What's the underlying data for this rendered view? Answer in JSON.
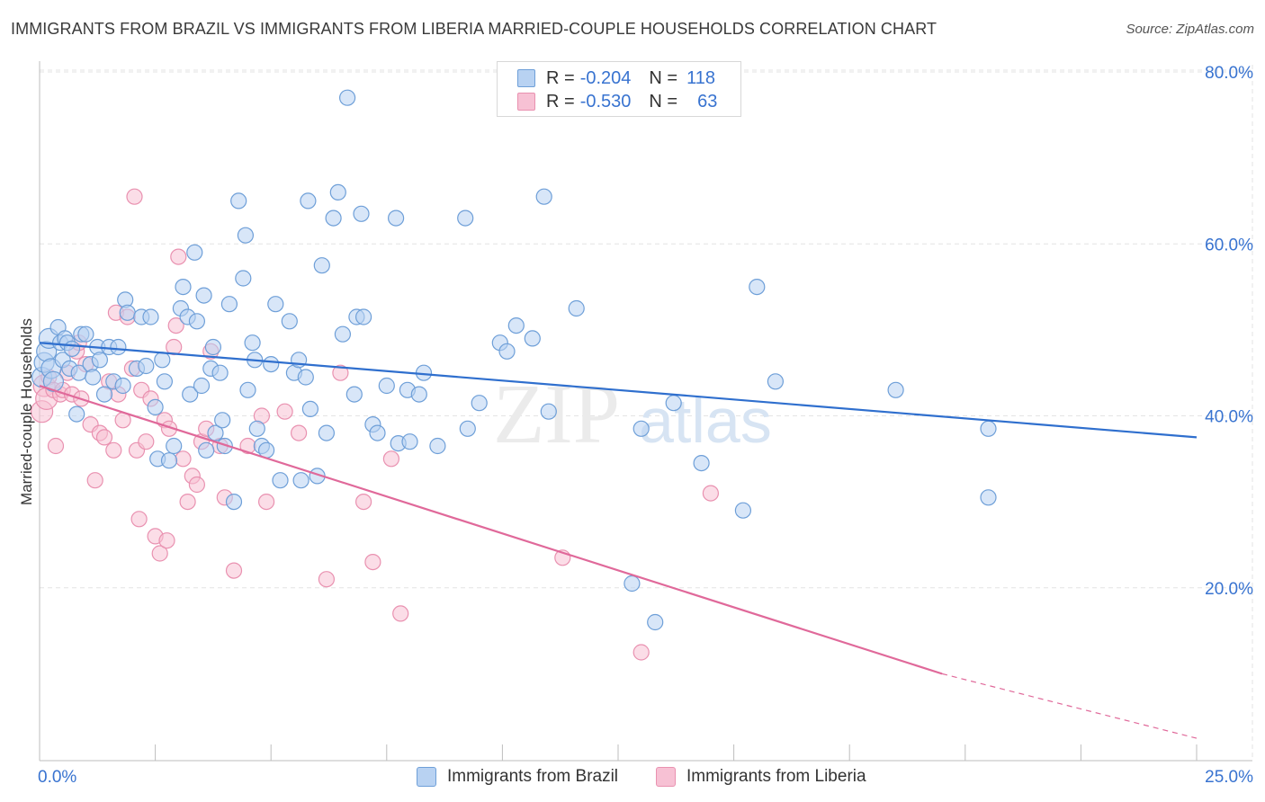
{
  "title": "IMMIGRANTS FROM BRAZIL VS IMMIGRANTS FROM LIBERIA MARRIED-COUPLE HOUSEHOLDS CORRELATION CHART",
  "source": "Source: ZipAtlas.com",
  "watermark": {
    "zip": "ZIP",
    "atlas": "atlas"
  },
  "legend": {
    "brazil": {
      "r_label": "R =",
      "r_value": "-0.204",
      "n_label": "N =",
      "n_value": "118"
    },
    "liberia": {
      "r_label": "R =",
      "r_value": "-0.530",
      "n_label": "N =",
      "n_value": "63"
    }
  },
  "colors": {
    "brazil_fill": "#b8d2f2",
    "brazil_stroke": "#6e9fd8",
    "brazil_line": "#2f6fce",
    "liberia_fill": "#f7c1d4",
    "liberia_stroke": "#e991b0",
    "liberia_line": "#e0699a",
    "axis_label": "#3873d0",
    "grid": "#e3e3e3"
  },
  "chart_data": {
    "type": "scatter",
    "title": "IMMIGRANTS FROM BRAZIL VS IMMIGRANTS FROM LIBERIA MARRIED-COUPLE HOUSEHOLDS CORRELATION CHART",
    "xlabel": "",
    "ylabel": "Married-couple Households",
    "xlim": [
      0,
      25
    ],
    "ylim": [
      0,
      80
    ],
    "x_tick_labels": [
      "0.0%",
      "25.0%"
    ],
    "y_ticks": [
      20,
      40,
      60,
      80
    ],
    "y_tick_labels": [
      "20.0%",
      "40.0%",
      "60.0%",
      "80.0%"
    ],
    "series": [
      {
        "name": "Immigrants from Brazil",
        "key": "brazil",
        "R": -0.204,
        "N": 118,
        "trend": {
          "x0": 0,
          "y0": 48.5,
          "x1": 25,
          "y1": 37.5
        },
        "points": [
          [
            0.05,
            44.5
          ],
          [
            0.1,
            46.2
          ],
          [
            0.15,
            47.5
          ],
          [
            0.2,
            49.0
          ],
          [
            0.25,
            45.5
          ],
          [
            0.3,
            44.0
          ],
          [
            0.4,
            50.3
          ],
          [
            0.45,
            48.5
          ],
          [
            0.5,
            46.5
          ],
          [
            0.55,
            49.0
          ],
          [
            0.6,
            48.5
          ],
          [
            0.65,
            45.5
          ],
          [
            0.7,
            47.8
          ],
          [
            0.8,
            40.2
          ],
          [
            0.85,
            45.0
          ],
          [
            0.9,
            49.5
          ],
          [
            1.0,
            49.5
          ],
          [
            1.1,
            46.0
          ],
          [
            1.15,
            44.5
          ],
          [
            1.25,
            48.0
          ],
          [
            1.3,
            46.5
          ],
          [
            1.4,
            42.5
          ],
          [
            1.5,
            48.0
          ],
          [
            1.6,
            44.0
          ],
          [
            1.7,
            48.0
          ],
          [
            1.8,
            43.5
          ],
          [
            1.85,
            53.5
          ],
          [
            1.9,
            52.0
          ],
          [
            2.1,
            45.5
          ],
          [
            2.2,
            51.5
          ],
          [
            2.3,
            45.8
          ],
          [
            2.4,
            51.5
          ],
          [
            2.5,
            41.0
          ],
          [
            2.55,
            35.0
          ],
          [
            2.65,
            46.5
          ],
          [
            2.7,
            44.0
          ],
          [
            2.8,
            34.8
          ],
          [
            2.9,
            36.5
          ],
          [
            3.05,
            52.5
          ],
          [
            3.1,
            55.0
          ],
          [
            3.2,
            51.5
          ],
          [
            3.25,
            42.5
          ],
          [
            3.35,
            59.0
          ],
          [
            3.4,
            51.0
          ],
          [
            3.5,
            43.5
          ],
          [
            3.55,
            54.0
          ],
          [
            3.6,
            36.0
          ],
          [
            3.7,
            45.5
          ],
          [
            3.75,
            48.0
          ],
          [
            3.8,
            38.0
          ],
          [
            3.9,
            45.0
          ],
          [
            3.95,
            39.5
          ],
          [
            4.0,
            36.5
          ],
          [
            4.1,
            53.0
          ],
          [
            4.2,
            30.0
          ],
          [
            4.3,
            65.0
          ],
          [
            4.4,
            56.0
          ],
          [
            4.45,
            61.0
          ],
          [
            4.5,
            43.0
          ],
          [
            4.6,
            48.5
          ],
          [
            4.65,
            46.5
          ],
          [
            4.7,
            38.5
          ],
          [
            4.8,
            36.5
          ],
          [
            4.9,
            36.0
          ],
          [
            5.0,
            46.0
          ],
          [
            5.1,
            53.0
          ],
          [
            5.2,
            32.5
          ],
          [
            5.4,
            51.0
          ],
          [
            5.5,
            45.0
          ],
          [
            5.6,
            46.5
          ],
          [
            5.65,
            32.5
          ],
          [
            5.75,
            44.5
          ],
          [
            5.8,
            65.0
          ],
          [
            5.85,
            40.8
          ],
          [
            6.0,
            33.0
          ],
          [
            6.1,
            57.5
          ],
          [
            6.2,
            38.0
          ],
          [
            6.35,
            63.0
          ],
          [
            6.45,
            66.0
          ],
          [
            6.55,
            49.5
          ],
          [
            6.65,
            77.0
          ],
          [
            6.8,
            42.5
          ],
          [
            6.85,
            51.5
          ],
          [
            6.95,
            63.5
          ],
          [
            7.0,
            51.5
          ],
          [
            7.2,
            39.0
          ],
          [
            7.3,
            38.0
          ],
          [
            7.5,
            43.5
          ],
          [
            7.7,
            63.0
          ],
          [
            7.75,
            36.8
          ],
          [
            7.95,
            43.0
          ],
          [
            8.0,
            37.0
          ],
          [
            8.2,
            42.5
          ],
          [
            8.3,
            45.0
          ],
          [
            8.6,
            36.5
          ],
          [
            9.2,
            63.0
          ],
          [
            9.25,
            38.5
          ],
          [
            9.5,
            41.5
          ],
          [
            9.95,
            48.5
          ],
          [
            10.1,
            47.5
          ],
          [
            10.3,
            50.5
          ],
          [
            10.65,
            49.0
          ],
          [
            10.9,
            65.5
          ],
          [
            11.0,
            40.5
          ],
          [
            11.6,
            52.5
          ],
          [
            12.8,
            20.5
          ],
          [
            13.0,
            38.5
          ],
          [
            13.3,
            16.0
          ],
          [
            13.7,
            41.5
          ],
          [
            14.3,
            34.5
          ],
          [
            15.2,
            29.0
          ],
          [
            15.5,
            55.0
          ],
          [
            15.9,
            44.0
          ],
          [
            18.5,
            43.0
          ],
          [
            20.5,
            30.5
          ],
          [
            20.5,
            38.5
          ]
        ]
      },
      {
        "name": "Immigrants from Liberia",
        "key": "liberia",
        "R": -0.53,
        "N": 63,
        "trend": {
          "x0": 0,
          "y0": 43.5,
          "x1": 19.5,
          "y1": 10.0
        },
        "trend_dashed": {
          "x0": 19.5,
          "y0": 10.0,
          "x1": 25,
          "y1": 2.5
        },
        "points": [
          [
            0.05,
            40.5
          ],
          [
            0.1,
            43.5
          ],
          [
            0.15,
            42.0
          ],
          [
            0.2,
            44.5
          ],
          [
            0.3,
            43.0
          ],
          [
            0.35,
            36.5
          ],
          [
            0.45,
            42.5
          ],
          [
            0.5,
            43.0
          ],
          [
            0.6,
            45.0
          ],
          [
            0.7,
            42.5
          ],
          [
            0.8,
            47.5
          ],
          [
            0.85,
            48.5
          ],
          [
            0.9,
            42.0
          ],
          [
            1.0,
            46.0
          ],
          [
            1.1,
            39.0
          ],
          [
            1.2,
            32.5
          ],
          [
            1.3,
            38.0
          ],
          [
            1.4,
            37.5
          ],
          [
            1.5,
            44.0
          ],
          [
            1.6,
            36.0
          ],
          [
            1.65,
            52.0
          ],
          [
            1.7,
            42.5
          ],
          [
            1.8,
            39.5
          ],
          [
            1.9,
            51.5
          ],
          [
            2.0,
            45.5
          ],
          [
            2.05,
            65.5
          ],
          [
            2.1,
            36.0
          ],
          [
            2.15,
            28.0
          ],
          [
            2.2,
            43.0
          ],
          [
            2.3,
            37.0
          ],
          [
            2.4,
            42.0
          ],
          [
            2.5,
            26.0
          ],
          [
            2.6,
            24.0
          ],
          [
            2.7,
            39.5
          ],
          [
            2.75,
            25.5
          ],
          [
            2.8,
            38.5
          ],
          [
            2.9,
            48.0
          ],
          [
            2.95,
            50.5
          ],
          [
            3.0,
            58.5
          ],
          [
            3.1,
            35.0
          ],
          [
            3.2,
            30.0
          ],
          [
            3.3,
            33.0
          ],
          [
            3.4,
            32.0
          ],
          [
            3.5,
            37.0
          ],
          [
            3.6,
            38.5
          ],
          [
            3.7,
            47.5
          ],
          [
            3.9,
            36.5
          ],
          [
            4.0,
            30.5
          ],
          [
            4.2,
            22.0
          ],
          [
            4.5,
            36.5
          ],
          [
            4.8,
            40.0
          ],
          [
            4.9,
            30.0
          ],
          [
            5.3,
            40.5
          ],
          [
            5.6,
            38.0
          ],
          [
            6.2,
            21.0
          ],
          [
            6.5,
            45.0
          ],
          [
            7.0,
            30.0
          ],
          [
            7.2,
            23.0
          ],
          [
            7.6,
            35.0
          ],
          [
            7.8,
            17.0
          ],
          [
            11.3,
            23.5
          ],
          [
            13.0,
            12.5
          ],
          [
            14.5,
            31.0
          ]
        ]
      }
    ]
  }
}
